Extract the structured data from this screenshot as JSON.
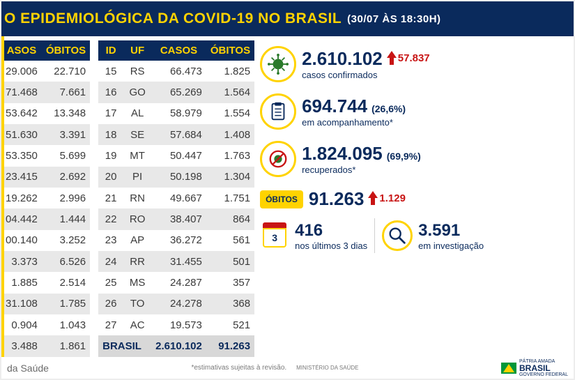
{
  "header": {
    "title": "O EPIDEMIOLÓGICA DA COVID-19 NO BRASIL",
    "timestamp": "(30/07 ÀS 18:30H)"
  },
  "colors": {
    "header_bg": "#0a2a5c",
    "accent": "#ffd300",
    "text_dark": "#0a2a5c",
    "delta_red": "#c81414",
    "row_stripe": "#e8e8e8"
  },
  "table_left": {
    "columns": [
      "ASOS",
      "ÓBITOS"
    ],
    "rows": [
      [
        "29.006",
        "22.710"
      ],
      [
        "71.468",
        "7.661"
      ],
      [
        "53.642",
        "13.348"
      ],
      [
        "51.630",
        "3.391"
      ],
      [
        "53.350",
        "5.699"
      ],
      [
        "23.415",
        "2.692"
      ],
      [
        "19.262",
        "2.996"
      ],
      [
        "04.442",
        "1.444"
      ],
      [
        "00.140",
        "3.252"
      ],
      [
        "3.373",
        "6.526"
      ],
      [
        "1.885",
        "2.514"
      ],
      [
        "31.108",
        "1.785"
      ],
      [
        "0.904",
        "1.043"
      ],
      [
        "3.488",
        "1.861"
      ]
    ]
  },
  "table_right": {
    "columns": [
      "ID",
      "UF",
      "CASOS",
      "ÓBITOS"
    ],
    "rows": [
      [
        "15",
        "RS",
        "66.473",
        "1.825"
      ],
      [
        "16",
        "GO",
        "65.269",
        "1.564"
      ],
      [
        "17",
        "AL",
        "58.979",
        "1.554"
      ],
      [
        "18",
        "SE",
        "57.684",
        "1.408"
      ],
      [
        "19",
        "MT",
        "50.447",
        "1.763"
      ],
      [
        "20",
        "PI",
        "50.198",
        "1.304"
      ],
      [
        "21",
        "RN",
        "49.667",
        "1.751"
      ],
      [
        "22",
        "RO",
        "38.407",
        "864"
      ],
      [
        "23",
        "AP",
        "36.272",
        "561"
      ],
      [
        "24",
        "RR",
        "31.455",
        "501"
      ],
      [
        "25",
        "MS",
        "24.287",
        "357"
      ],
      [
        "26",
        "TO",
        "24.278",
        "368"
      ],
      [
        "27",
        "AC",
        "19.573",
        "521"
      ]
    ],
    "total": [
      "BRASIL",
      "",
      "2.610.102",
      "91.263"
    ]
  },
  "stats": {
    "confirmed": {
      "value": "2.610.102",
      "delta": "57.837",
      "label": "casos confirmados"
    },
    "monitoring": {
      "value": "694.744",
      "pct": "(26,6%)",
      "label": "em acompanhamento*"
    },
    "recovered": {
      "value": "1.824.095",
      "pct": "(69,9%)",
      "label": "recuperados*"
    },
    "deaths": {
      "badge": "ÓBITOS",
      "value": "91.263",
      "delta": "1.129"
    },
    "last3": {
      "calendar_num": "3",
      "value": "416",
      "label": "nos últimos 3 dias"
    },
    "investigation": {
      "value": "3.591",
      "label": "em investigação"
    }
  },
  "footer": {
    "source": " da Saúde",
    "note": "*estimativas sujeitas à revisão.",
    "ministry": "MINISTÉRIO DA SAÚDE",
    "brand_top": "PÁTRIA AMADA",
    "brand": "BRASIL",
    "brand_sub": "GOVERNO FEDERAL"
  }
}
